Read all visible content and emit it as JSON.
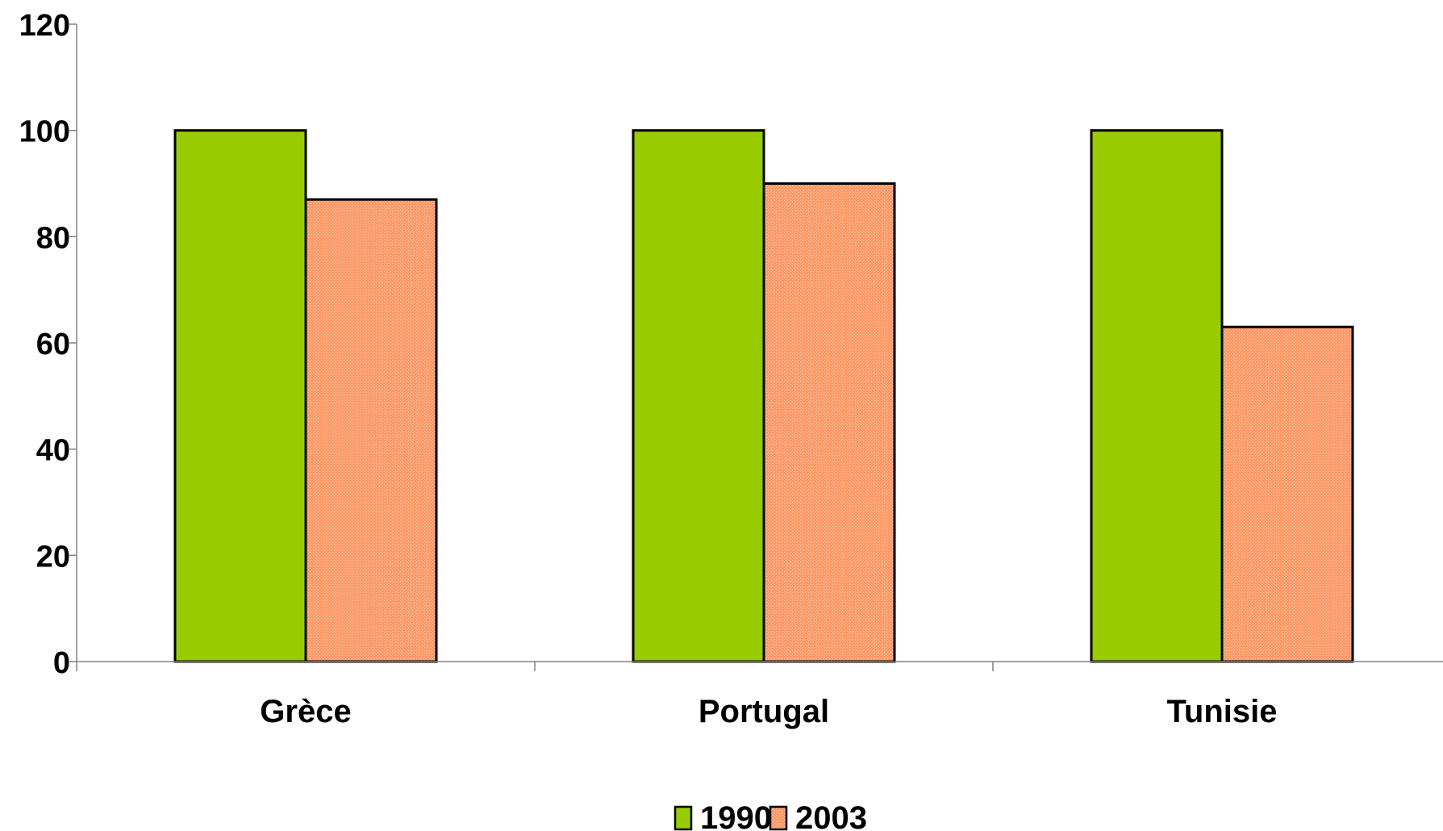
{
  "chart_data": {
    "type": "bar",
    "categories": [
      "Grèce",
      "Portugal",
      "Tunisie"
    ],
    "series": [
      {
        "name": "1990",
        "values": [
          100,
          100,
          100
        ],
        "color": "#99cc00"
      },
      {
        "name": "2003",
        "values": [
          87,
          90,
          63
        ],
        "color": "#ff9966"
      }
    ],
    "ylim": [
      0,
      120
    ],
    "yticks": [
      0,
      20,
      40,
      60,
      80,
      100,
      120
    ],
    "ytick_labels": [
      "0",
      "20",
      "40",
      "60",
      "80",
      "100",
      "120"
    ],
    "grid": false,
    "legend_position": "bottom",
    "legend_labels": [
      "1990",
      "2003"
    ],
    "title": "",
    "xlabel": "",
    "ylabel": ""
  }
}
